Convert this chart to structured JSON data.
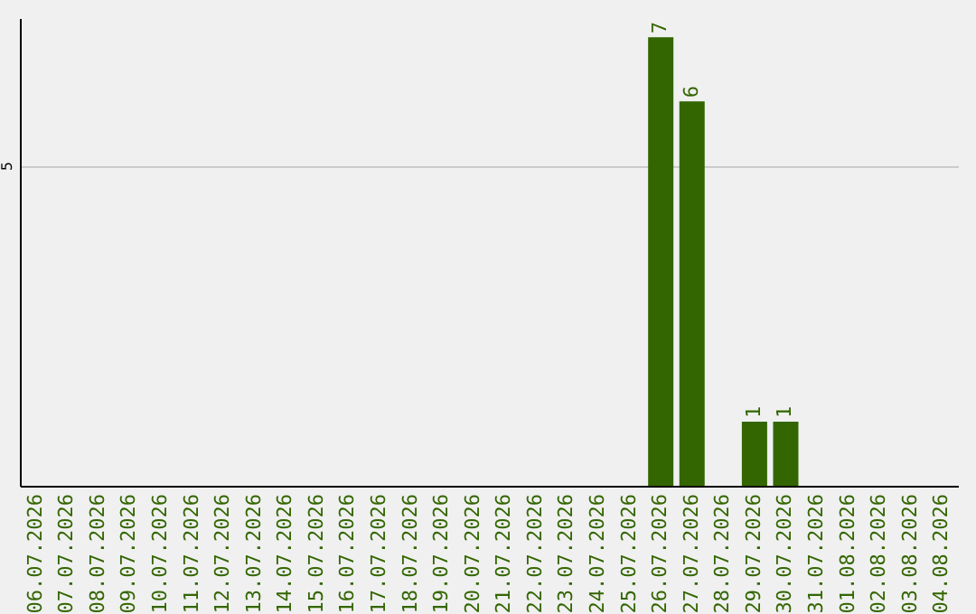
{
  "chart_data": {
    "type": "bar",
    "categories": [
      "06.07.2026",
      "07.07.2026",
      "08.07.2026",
      "09.07.2026",
      "10.07.2026",
      "11.07.2026",
      "12.07.2026",
      "13.07.2026",
      "14.07.2026",
      "15.07.2026",
      "16.07.2026",
      "17.07.2026",
      "18.07.2026",
      "19.07.2026",
      "20.07.2026",
      "21.07.2026",
      "22.07.2026",
      "23.07.2026",
      "24.07.2026",
      "25.07.2026",
      "26.07.2026",
      "27.07.2026",
      "28.07.2026",
      "29.07.2026",
      "30.07.2026",
      "31.07.2026",
      "01.08.2026",
      "02.08.2026",
      "03.08.2026",
      "04.08.2026"
    ],
    "values": [
      null,
      null,
      null,
      null,
      null,
      null,
      null,
      null,
      null,
      null,
      null,
      null,
      null,
      null,
      null,
      null,
      null,
      null,
      null,
      null,
      7,
      6,
      null,
      1,
      1,
      null,
      null,
      null,
      null,
      null
    ],
    "color": "#336600",
    "ylim": [
      0,
      7.3
    ],
    "yticks": [
      5
    ],
    "grid": "y",
    "data_labels": true
  }
}
